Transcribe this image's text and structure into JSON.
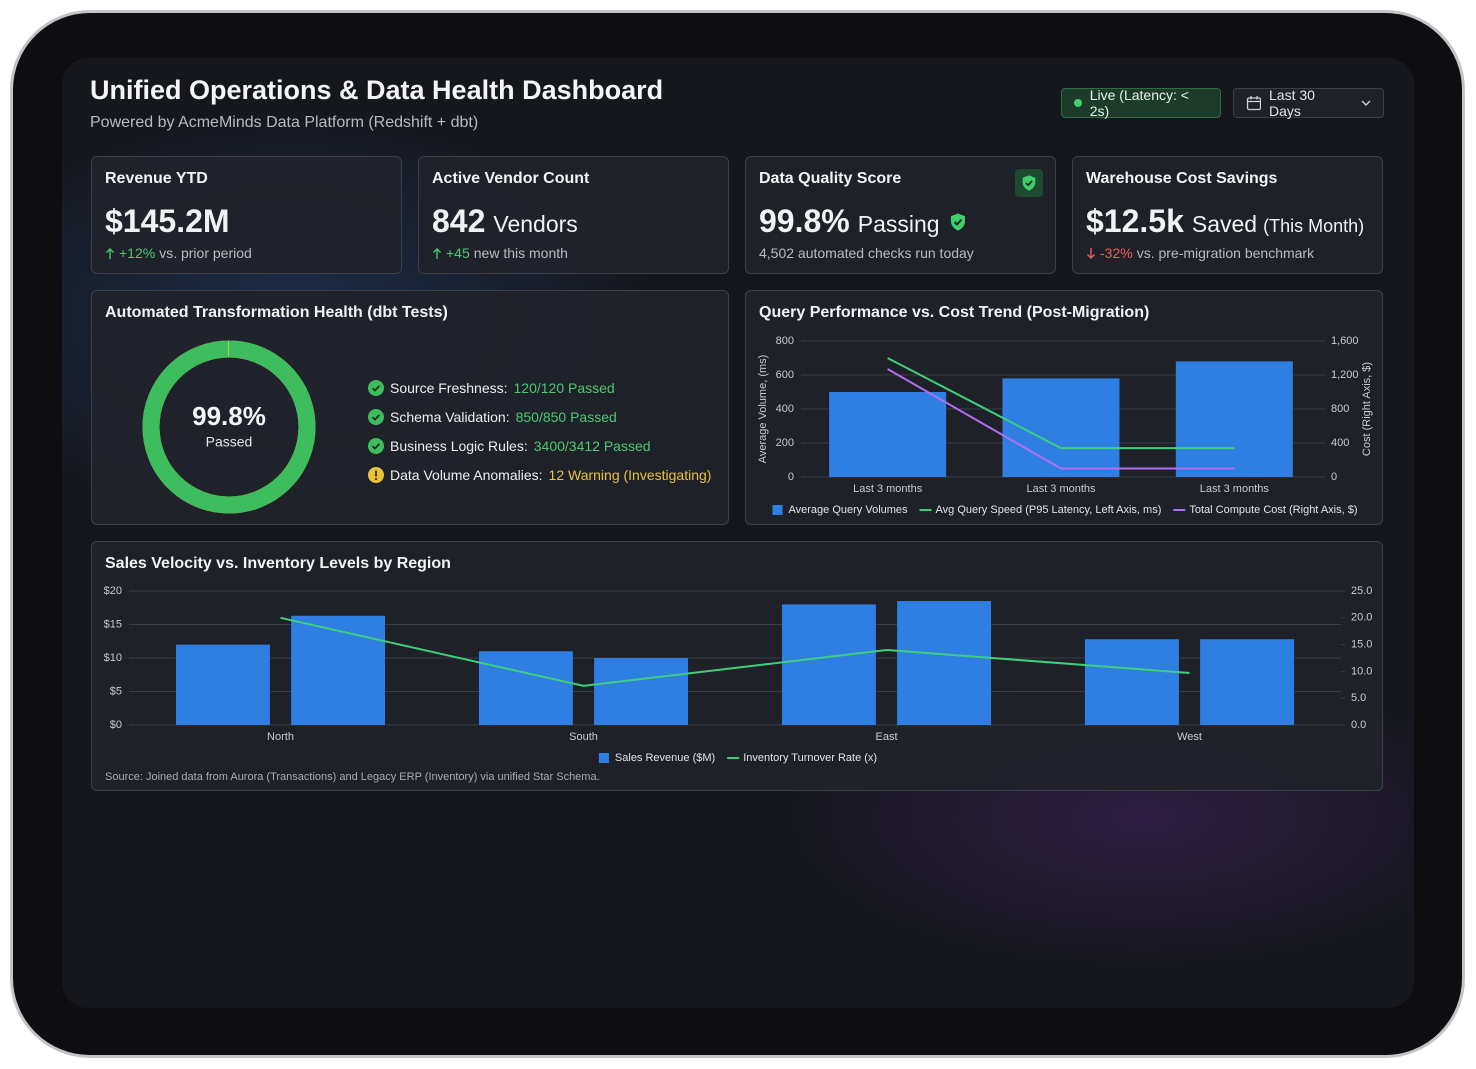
{
  "header": {
    "title": "Unified Operations & Data Health Dashboard",
    "subtitle": "Powered by AcmeMinds Data Platform (Redshift + dbt)",
    "live_status": "Live (Latency: < 2s)",
    "date_range": "Last 30 Days"
  },
  "kpis": [
    {
      "title": "Revenue YTD",
      "value": "$145.2M",
      "delta": "+12%",
      "delta_text": "vs. prior period",
      "trend": "up"
    },
    {
      "title": "Active Vendor Count",
      "value": "842",
      "unit": "Vendors",
      "delta": "+45",
      "delta_text": "new this month",
      "trend": "up"
    },
    {
      "title": "Data Quality Score",
      "value": "99.8%",
      "unit": "Passing",
      "note": "4,502 automated checks run today",
      "verified": true
    },
    {
      "title": "Warehouse Cost Savings",
      "value": "$12.5k",
      "unit": "Saved",
      "qualifier": "(This Month)",
      "delta": "-32%",
      "delta_text": "vs. pre-migration benchmark",
      "trend": "down"
    }
  ],
  "chart_data": [
    {
      "type": "donut",
      "title": "Automated Transformation Health (dbt Tests)",
      "values": [
        99.8
      ],
      "value_labels": [
        "99.8%"
      ],
      "range": [
        0,
        100
      ],
      "center_label": "Passed",
      "color": "#3dbd5d",
      "track_color": "#e3c53a",
      "checks": [
        {
          "label": "Source Freshness:",
          "result": "120/120 Passed",
          "status": "pass"
        },
        {
          "label": "Schema Validation:",
          "result": "850/850 Passed",
          "status": "pass"
        },
        {
          "label": "Business Logic Rules:",
          "result": "3400/3412 Passed",
          "status": "pass"
        },
        {
          "label": "Data Volume Anomalies:",
          "result": "12 Warning (Investigating)",
          "status": "warning"
        }
      ]
    },
    {
      "type": "bar",
      "title": "Query Performance vs. Cost Trend (Post-Migration)",
      "categories": [
        "Last 3 months",
        "Last 3 months",
        "Last 3 months"
      ],
      "ylim": [
        0,
        800
      ],
      "yticks": [
        0,
        200,
        400,
        600,
        800
      ],
      "y2lim": [
        0,
        1600
      ],
      "y2ticks": [
        0,
        400,
        800,
        {
          "value": 1200,
          "label": "1,200"
        },
        {
          "value": 1600,
          "label": "1,600"
        }
      ],
      "ylabel": "Average Volume, (ms)",
      "y2label": "Cost (Right Axis, $)",
      "grid": true,
      "series": [
        {
          "name": "Average Query Volumes",
          "type": "bar",
          "color": "#2f7fe3",
          "values": [
            500,
            580,
            680
          ]
        },
        {
          "name": "Avg Query Speed (P95 Latency, Left Axis, ms)",
          "type": "line",
          "color": "#3fcf7c",
          "values": [
            700,
            170,
            170
          ]
        },
        {
          "name": "Total Compute Cost (Right Axis, $)",
          "type": "line",
          "axis": "y2",
          "color": "#b26ef2",
          "values": [
            1270,
            100,
            100
          ]
        }
      ]
    },
    {
      "type": "bar",
      "title": "Sales Velocity vs. Inventory Levels by Region",
      "categories": [
        "North",
        "South",
        "East",
        "West"
      ],
      "ylim": [
        0,
        20
      ],
      "yticks": [
        {
          "value": 0,
          "label": "$0"
        },
        {
          "value": 5,
          "label": "$5"
        },
        {
          "value": 10,
          "label": "$10"
        },
        {
          "value": 15,
          "label": "$15"
        },
        {
          "value": 20,
          "label": "$20"
        }
      ],
      "y2lim": [
        0,
        25
      ],
      "y2ticks": [
        {
          "value": 0,
          "label": "0.0"
        },
        {
          "value": 5,
          "label": "5.0"
        },
        {
          "value": 10,
          "label": "10.0"
        },
        {
          "value": 15,
          "label": "15.0"
        },
        {
          "value": 20,
          "label": "20.0"
        },
        {
          "value": 25,
          "label": "25.0"
        }
      ],
      "grid": true,
      "series": [
        {
          "name": "Sales Revenue ($M)",
          "type": "bar",
          "color": "#2f7fe3",
          "values": [
            12,
            11,
            18,
            12.8
          ]
        },
        {
          "type": "bar",
          "color": "#2f7fe3",
          "values": [
            16.3,
            10,
            18.5,
            12.8
          ]
        },
        {
          "name": "Inventory Turnover Rate (x)",
          "type": "line",
          "axis": "y2",
          "color": "#3fcf7c",
          "values": [
            20,
            7.3,
            14,
            9.7
          ]
        }
      ]
    }
  ],
  "source_note": "Source: Joined data from Aurora (Transactions) and Legacy ERP (Inventory) via unified Star Schema."
}
